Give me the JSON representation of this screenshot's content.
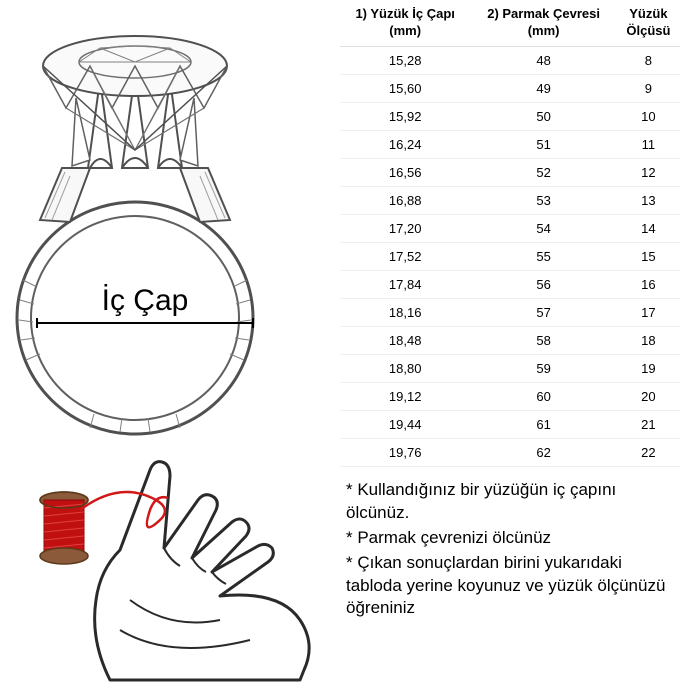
{
  "table": {
    "columns": [
      "1) Yüzük İç Çapı (mm)",
      "2) Parmak Çevresi (mm)",
      "Yüzük Ölçüsü"
    ],
    "column_headers": {
      "col1_line1": "1) Yüzük İç Çapı",
      "col1_line2": "(mm)",
      "col2_line1": "2) Parmak Çevresi",
      "col2_line2": "(mm)",
      "col3_line1": "Yüzük",
      "col3_line2": "Ölçüsü"
    },
    "rows": [
      [
        "15,28",
        "48",
        "8"
      ],
      [
        "15,60",
        "49",
        "9"
      ],
      [
        "15,92",
        "50",
        "10"
      ],
      [
        "16,24",
        "51",
        "11"
      ],
      [
        "16,56",
        "52",
        "12"
      ],
      [
        "16,88",
        "53",
        "13"
      ],
      [
        "17,20",
        "54",
        "14"
      ],
      [
        "17,52",
        "55",
        "15"
      ],
      [
        "17,84",
        "56",
        "16"
      ],
      [
        "18,16",
        "57",
        "17"
      ],
      [
        "18,48",
        "58",
        "18"
      ],
      [
        "18,80",
        "59",
        "19"
      ],
      [
        "19,12",
        "60",
        "20"
      ],
      [
        "19,44",
        "61",
        "21"
      ],
      [
        "19,76",
        "62",
        "22"
      ]
    ],
    "header_fontsize": 13,
    "cell_fontsize": 13,
    "border_color": "#e0e0e0",
    "text_color": "#000000"
  },
  "diameter_label": "İç Çap",
  "instructions": {
    "line1": "* Kullandığınız bir yüzüğün iç çapını ölcünüz.",
    "line2": "* Parmak çevrenizi ölcünüz",
    "line3": "* Çıkan sonuçlardan birini yukarıdaki tabloda yerine koyunuz ve yüzük ölçünüzü öğreniniz"
  },
  "illustrations": {
    "ring": {
      "type": "sketch",
      "stroke": "#404040",
      "fill": "#ffffff",
      "shadow": "#c0c0c0"
    },
    "hand": {
      "type": "sketch",
      "stroke": "#2a2a2a",
      "thread_color": "#d01818",
      "spool_color": "#c01010"
    }
  },
  "background_color": "#ffffff"
}
